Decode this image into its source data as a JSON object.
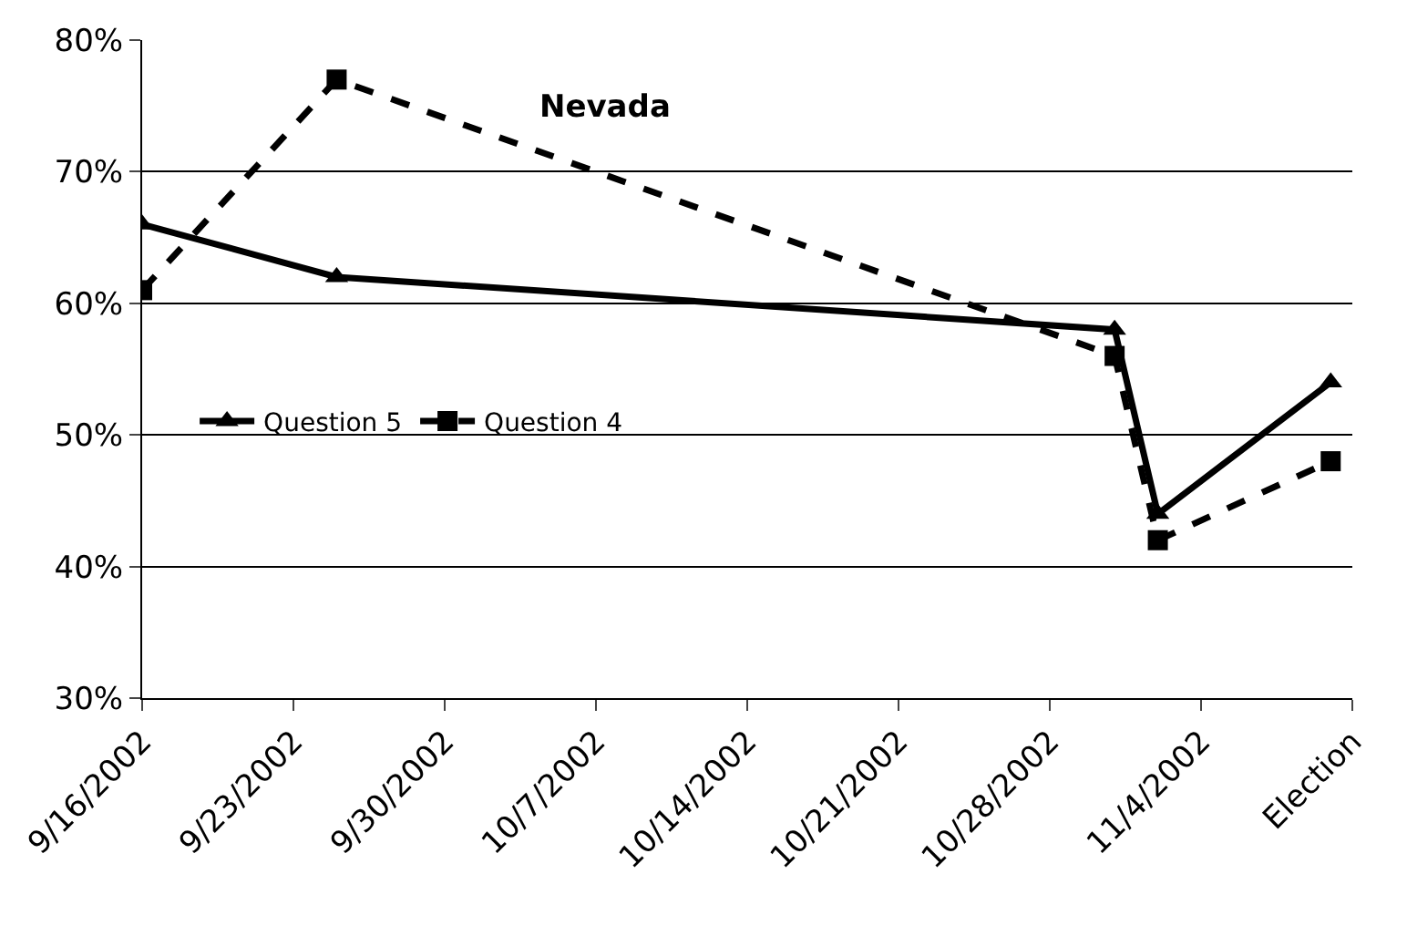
{
  "chart_data": {
    "type": "line",
    "title": "Nevada",
    "series": [
      {
        "name": "Question 5",
        "color": "#000000",
        "marker": "triangle",
        "line_style": "solid",
        "x": [
          "2002-09-16",
          "2002-09-25",
          "2002-10-31",
          "2002-11-02",
          "2002-11-10"
        ],
        "values": [
          66,
          62,
          58,
          44,
          54
        ]
      },
      {
        "name": "Question 4",
        "color": "#000000",
        "marker": "square",
        "line_style": "dashed",
        "x": [
          "2002-09-16",
          "2002-09-25",
          "2002-10-31",
          "2002-11-02",
          "2002-11-10"
        ],
        "values": [
          61,
          77,
          56,
          42,
          48
        ]
      }
    ],
    "xlim": [
      "2002-09-16",
      "2002-11-11"
    ],
    "xticks": [
      {
        "value": "2002-09-16",
        "label": "9/16/2002"
      },
      {
        "value": "2002-09-23",
        "label": "9/23/2002"
      },
      {
        "value": "2002-09-30",
        "label": "9/30/2002"
      },
      {
        "value": "2002-10-07",
        "label": "10/7/2002"
      },
      {
        "value": "2002-10-14",
        "label": "10/14/2002"
      },
      {
        "value": "2002-10-21",
        "label": "10/21/2002"
      },
      {
        "value": "2002-10-28",
        "label": "10/28/2002"
      },
      {
        "value": "2002-11-04",
        "label": "11/4/2002"
      },
      {
        "value": "2002-11-11",
        "label": "Election"
      }
    ],
    "ylim": [
      30,
      80
    ],
    "yticks": [
      {
        "value": 30,
        "label": "30%"
      },
      {
        "value": 40,
        "label": "40%"
      },
      {
        "value": 50,
        "label": "50%"
      },
      {
        "value": 60,
        "label": "60%"
      },
      {
        "value": 70,
        "label": "70%"
      },
      {
        "value": 80,
        "label": "80%"
      }
    ],
    "grid": "y",
    "legend": "left"
  }
}
